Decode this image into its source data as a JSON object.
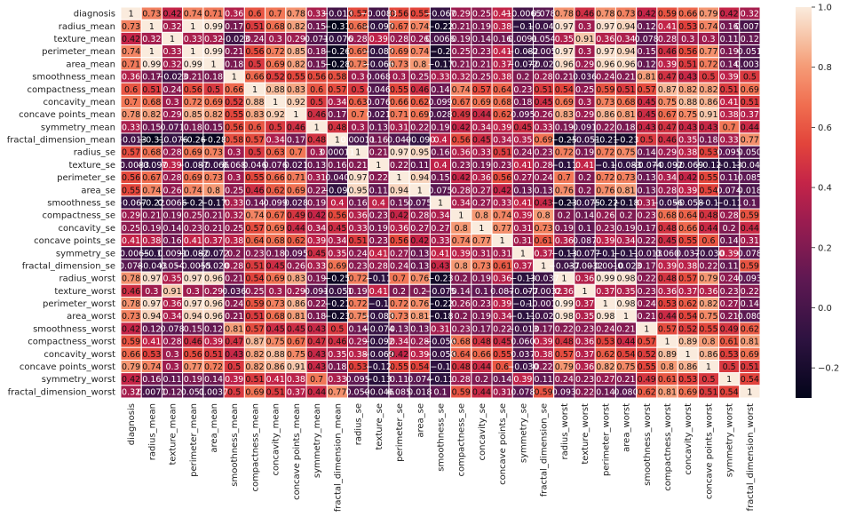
{
  "chart_data": {
    "type": "heatmap",
    "title": "",
    "xlabel": "",
    "ylabel": "",
    "labels": [
      "diagnosis",
      "radius_mean",
      "texture_mean",
      "perimeter_mean",
      "area_mean",
      "smoothness_mean",
      "compactness_mean",
      "concavity_mean",
      "concave points_mean",
      "symmetry_mean",
      "fractal_dimension_mean",
      "radius_se",
      "texture_se",
      "perimeter_se",
      "area_se",
      "smoothness_se",
      "compactness_se",
      "concavity_se",
      "concave points_se",
      "symmetry_se",
      "fractal_dimension_se",
      "radius_worst",
      "texture_worst",
      "perimeter_worst",
      "area_worst",
      "smoothness_worst",
      "compactness_worst",
      "concavity_worst",
      "concave points_worst",
      "symmetry_worst",
      "fractal_dimension_worst"
    ],
    "matrix": [
      [
        1,
        0.73,
        0.42,
        0.74,
        0.71,
        0.36,
        0.6,
        0.7,
        0.78,
        0.33,
        -0.013,
        0.57,
        -0.0083,
        0.56,
        0.55,
        -0.067,
        0.29,
        0.25,
        0.41,
        -0.0065,
        0.078,
        0.78,
        0.46,
        0.78,
        0.73,
        0.42,
        0.59,
        0.66,
        0.79,
        0.42,
        0.32
      ],
      [
        0.73,
        1,
        0.32,
        1,
        0.99,
        0.17,
        0.51,
        0.68,
        0.82,
        0.15,
        -0.31,
        0.68,
        -0.097,
        0.67,
        0.74,
        -0.22,
        0.21,
        0.19,
        0.38,
        -0.1,
        -0.043,
        0.97,
        0.3,
        0.97,
        0.94,
        0.12,
        0.41,
        0.53,
        0.74,
        0.16,
        0.0071
      ],
      [
        0.42,
        0.32,
        1,
        0.33,
        0.32,
        -0.023,
        0.24,
        0.3,
        0.29,
        0.071,
        -0.076,
        0.28,
        0.39,
        0.28,
        0.26,
        0.0066,
        0.19,
        0.14,
        0.16,
        0.0091,
        0.054,
        0.35,
        0.91,
        0.36,
        0.34,
        0.078,
        0.28,
        0.3,
        0.3,
        0.11,
        0.12
      ],
      [
        0.74,
        1,
        0.33,
        1,
        0.99,
        0.21,
        0.56,
        0.72,
        0.85,
        0.18,
        -0.26,
        0.69,
        -0.087,
        0.69,
        0.74,
        -0.2,
        0.25,
        0.23,
        0.41,
        -0.082,
        -0.0055,
        0.97,
        0.3,
        0.97,
        0.94,
        0.15,
        0.46,
        0.56,
        0.77,
        0.19,
        0.051
      ],
      [
        0.71,
        0.99,
        0.32,
        0.99,
        1,
        0.18,
        0.5,
        0.69,
        0.82,
        0.15,
        -0.28,
        0.73,
        -0.066,
        0.73,
        0.8,
        -0.17,
        0.21,
        0.21,
        0.37,
        -0.072,
        -0.02,
        0.96,
        0.29,
        0.96,
        0.96,
        0.12,
        0.39,
        0.51,
        0.72,
        0.14,
        0.0037
      ],
      [
        0.36,
        0.17,
        -0.023,
        0.21,
        0.18,
        1,
        0.66,
        0.52,
        0.55,
        0.56,
        0.58,
        0.3,
        0.068,
        0.3,
        0.25,
        0.33,
        0.32,
        0.25,
        0.38,
        0.2,
        0.28,
        0.21,
        0.036,
        0.24,
        0.21,
        0.81,
        0.47,
        0.43,
        0.5,
        0.39,
        0.5
      ],
      [
        0.6,
        0.51,
        0.24,
        0.56,
        0.5,
        0.66,
        1,
        0.88,
        0.83,
        0.6,
        0.57,
        0.5,
        0.046,
        0.55,
        0.46,
        0.14,
        0.74,
        0.57,
        0.64,
        0.23,
        0.51,
        0.54,
        0.25,
        0.59,
        0.51,
        0.57,
        0.87,
        0.82,
        0.82,
        0.51,
        0.69
      ],
      [
        0.7,
        0.68,
        0.3,
        0.72,
        0.69,
        0.52,
        0.88,
        1,
        0.92,
        0.5,
        0.34,
        0.63,
        0.076,
        0.66,
        0.62,
        0.099,
        0.67,
        0.69,
        0.68,
        0.18,
        0.45,
        0.69,
        0.3,
        0.73,
        0.68,
        0.45,
        0.75,
        0.88,
        0.86,
        0.41,
        0.51
      ],
      [
        0.78,
        0.82,
        0.29,
        0.85,
        0.82,
        0.55,
        0.83,
        0.92,
        1,
        0.46,
        0.17,
        0.7,
        0.021,
        0.71,
        0.69,
        0.028,
        0.49,
        0.44,
        0.62,
        0.095,
        0.26,
        0.83,
        0.29,
        0.86,
        0.81,
        0.45,
        0.67,
        0.75,
        0.91,
        0.38,
        0.37
      ],
      [
        0.33,
        0.15,
        0.071,
        0.18,
        0.15,
        0.56,
        0.6,
        0.5,
        0.46,
        1,
        0.48,
        0.3,
        0.13,
        0.31,
        0.22,
        0.19,
        0.42,
        0.34,
        0.39,
        0.45,
        0.33,
        0.19,
        0.091,
        0.22,
        0.18,
        0.43,
        0.47,
        0.43,
        0.43,
        0.7,
        0.44
      ],
      [
        -0.013,
        -0.31,
        -0.076,
        -0.26,
        -0.28,
        0.58,
        0.57,
        0.34,
        0.17,
        0.48,
        1,
        0.00011,
        0.16,
        0.04,
        -0.09,
        0.4,
        0.56,
        0.45,
        0.34,
        0.35,
        0.69,
        -0.25,
        -0.051,
        -0.21,
        -0.23,
        0.5,
        0.46,
        0.35,
        0.18,
        0.33,
        0.77
      ],
      [
        0.57,
        0.68,
        0.28,
        0.69,
        0.73,
        0.3,
        0.5,
        0.63,
        0.7,
        0.3,
        0.00011,
        1,
        0.21,
        0.97,
        0.95,
        0.16,
        0.36,
        0.33,
        0.51,
        0.24,
        0.23,
        0.72,
        0.19,
        0.72,
        0.75,
        0.14,
        0.29,
        0.38,
        0.53,
        0.095,
        0.05
      ],
      [
        -0.0083,
        -0.097,
        0.39,
        -0.087,
        -0.066,
        0.068,
        0.046,
        0.076,
        0.021,
        0.13,
        0.16,
        0.21,
        1,
        0.22,
        0.11,
        0.4,
        0.23,
        0.19,
        0.23,
        0.41,
        0.28,
        -0.11,
        0.41,
        -0.1,
        -0.083,
        -0.074,
        -0.092,
        -0.069,
        -0.12,
        -0.13,
        -0.046
      ],
      [
        0.56,
        0.67,
        0.28,
        0.69,
        0.73,
        0.3,
        0.55,
        0.66,
        0.71,
        0.31,
        0.04,
        0.97,
        0.22,
        1,
        0.94,
        0.15,
        0.42,
        0.36,
        0.56,
        0.27,
        0.24,
        0.7,
        0.2,
        0.72,
        0.73,
        0.13,
        0.34,
        0.42,
        0.55,
        0.11,
        0.085
      ],
      [
        0.55,
        0.74,
        0.26,
        0.74,
        0.8,
        0.25,
        0.46,
        0.62,
        0.69,
        0.22,
        -0.09,
        0.95,
        0.11,
        0.94,
        1,
        0.075,
        0.28,
        0.27,
        0.42,
        0.13,
        0.13,
        0.76,
        0.2,
        0.76,
        0.81,
        0.13,
        0.28,
        0.39,
        0.54,
        0.074,
        0.018
      ],
      [
        -0.067,
        -0.22,
        0.0066,
        -0.2,
        -0.17,
        0.33,
        0.14,
        0.099,
        0.028,
        0.19,
        0.4,
        0.16,
        0.4,
        0.15,
        0.075,
        1,
        0.34,
        0.27,
        0.33,
        0.41,
        0.43,
        -0.23,
        -0.075,
        -0.22,
        -0.18,
        0.31,
        -0.056,
        -0.058,
        -0.1,
        -0.11,
        0.1
      ],
      [
        0.29,
        0.21,
        0.19,
        0.25,
        0.21,
        0.32,
        0.74,
        0.67,
        0.49,
        0.42,
        0.56,
        0.36,
        0.23,
        0.42,
        0.28,
        0.34,
        1,
        0.8,
        0.74,
        0.39,
        0.8,
        0.2,
        0.14,
        0.26,
        0.2,
        0.23,
        0.68,
        0.64,
        0.48,
        0.28,
        0.59
      ],
      [
        0.25,
        0.19,
        0.14,
        0.23,
        0.21,
        0.25,
        0.57,
        0.69,
        0.44,
        0.34,
        0.45,
        0.33,
        0.19,
        0.36,
        0.27,
        0.27,
        0.8,
        1,
        0.77,
        0.31,
        0.73,
        0.19,
        0.1,
        0.23,
        0.19,
        0.17,
        0.48,
        0.66,
        0.44,
        0.2,
        0.44
      ],
      [
        0.41,
        0.38,
        0.16,
        0.41,
        0.37,
        0.38,
        0.64,
        0.68,
        0.62,
        0.39,
        0.34,
        0.51,
        0.23,
        0.56,
        0.42,
        0.33,
        0.74,
        0.77,
        1,
        0.31,
        0.61,
        0.36,
        0.087,
        0.39,
        0.34,
        0.22,
        0.45,
        0.55,
        0.6,
        0.14,
        0.31
      ],
      [
        -0.0065,
        -0.1,
        0.0091,
        -0.082,
        -0.072,
        0.2,
        0.23,
        0.18,
        0.095,
        0.45,
        0.35,
        0.24,
        0.41,
        0.27,
        0.13,
        0.41,
        0.39,
        0.31,
        0.31,
        1,
        0.37,
        -0.13,
        -0.077,
        -0.1,
        -0.11,
        -0.013,
        0.06,
        0.037,
        -0.03,
        0.39,
        0.078
      ],
      [
        0.078,
        -0.043,
        0.054,
        -0.0055,
        -0.02,
        0.28,
        0.51,
        0.45,
        0.26,
        0.33,
        0.69,
        0.23,
        0.28,
        0.24,
        0.13,
        0.43,
        0.8,
        0.73,
        0.61,
        0.37,
        1,
        -0.037,
        -0.0032,
        -0.001,
        -0.023,
        0.17,
        0.39,
        0.38,
        0.22,
        0.11,
        0.59
      ],
      [
        0.78,
        0.97,
        0.35,
        0.97,
        0.96,
        0.21,
        0.54,
        0.69,
        0.83,
        0.19,
        -0.25,
        0.72,
        -0.11,
        0.7,
        0.76,
        -0.23,
        0.2,
        0.19,
        0.36,
        -0.13,
        -0.037,
        1,
        0.36,
        0.99,
        0.98,
        0.22,
        0.48,
        0.57,
        0.79,
        0.24,
        0.093
      ],
      [
        0.46,
        0.3,
        0.91,
        0.3,
        0.29,
        0.036,
        0.25,
        0.3,
        0.29,
        0.091,
        -0.051,
        0.19,
        0.41,
        0.2,
        0.2,
        -0.075,
        0.14,
        0.1,
        0.087,
        -0.077,
        -0.0032,
        0.36,
        1,
        0.37,
        0.35,
        0.23,
        0.36,
        0.37,
        0.36,
        0.23,
        0.22
      ],
      [
        0.78,
        0.97,
        0.36,
        0.97,
        0.96,
        0.24,
        0.59,
        0.73,
        0.86,
        0.22,
        -0.21,
        0.72,
        -0.1,
        0.72,
        0.76,
        -0.22,
        0.26,
        0.23,
        0.39,
        -0.1,
        -0.001,
        0.99,
        0.37,
        1,
        0.98,
        0.24,
        0.53,
        0.62,
        0.82,
        0.27,
        0.14
      ],
      [
        0.73,
        0.94,
        0.34,
        0.94,
        0.96,
        0.21,
        0.51,
        0.68,
        0.81,
        0.18,
        -0.23,
        0.75,
        -0.083,
        0.73,
        0.81,
        -0.18,
        0.2,
        0.19,
        0.34,
        -0.11,
        -0.023,
        0.98,
        0.35,
        0.98,
        1,
        0.21,
        0.44,
        0.54,
        0.75,
        0.21,
        0.08
      ],
      [
        0.42,
        0.12,
        0.078,
        0.15,
        0.12,
        0.81,
        0.57,
        0.45,
        0.45,
        0.43,
        0.5,
        0.14,
        -0.074,
        0.13,
        0.13,
        0.31,
        0.23,
        0.17,
        0.22,
        -0.013,
        0.17,
        0.22,
        0.23,
        0.24,
        0.21,
        1,
        0.57,
        0.52,
        0.55,
        0.49,
        0.62
      ],
      [
        0.59,
        0.41,
        0.28,
        0.46,
        0.39,
        0.47,
        0.87,
        0.75,
        0.67,
        0.47,
        0.46,
        0.29,
        -0.092,
        0.34,
        0.28,
        -0.056,
        0.68,
        0.48,
        0.45,
        0.06,
        0.39,
        0.48,
        0.36,
        0.53,
        0.44,
        0.57,
        1,
        0.89,
        0.8,
        0.61,
        0.81
      ],
      [
        0.66,
        0.53,
        0.3,
        0.56,
        0.51,
        0.43,
        0.82,
        0.88,
        0.75,
        0.43,
        0.35,
        0.38,
        -0.069,
        0.42,
        0.39,
        -0.058,
        0.64,
        0.66,
        0.55,
        0.037,
        0.38,
        0.57,
        0.37,
        0.62,
        0.54,
        0.52,
        0.89,
        1,
        0.86,
        0.53,
        0.69
      ],
      [
        0.79,
        0.74,
        0.3,
        0.77,
        0.72,
        0.5,
        0.82,
        0.86,
        0.91,
        0.43,
        0.18,
        0.53,
        -0.12,
        0.55,
        0.54,
        -0.1,
        0.48,
        0.44,
        0.6,
        -0.03,
        0.22,
        0.79,
        0.36,
        0.82,
        0.75,
        0.55,
        0.8,
        0.86,
        1,
        0.5,
        0.51
      ],
      [
        0.42,
        0.16,
        0.11,
        0.19,
        0.14,
        0.39,
        0.51,
        0.41,
        0.38,
        0.7,
        0.33,
        0.095,
        -0.13,
        0.11,
        0.074,
        -0.11,
        0.28,
        0.2,
        0.14,
        0.39,
        0.11,
        0.24,
        0.23,
        0.27,
        0.21,
        0.49,
        0.61,
        0.53,
        0.5,
        1,
        0.54
      ],
      [
        0.32,
        0.0071,
        0.12,
        0.051,
        0.0037,
        0.5,
        0.69,
        0.51,
        0.37,
        0.44,
        0.77,
        0.05,
        -0.046,
        0.085,
        0.018,
        0.1,
        0.59,
        0.44,
        0.31,
        0.078,
        0.59,
        0.093,
        0.22,
        0.14,
        0.08,
        0.62,
        0.81,
        0.69,
        0.51,
        0.54,
        1
      ]
    ],
    "colorbar": {
      "min": -0.3,
      "max": 1.0,
      "ticks": [
        -0.2,
        0,
        0.2,
        0.4,
        0.6,
        0.8,
        1.0
      ],
      "tick_labels": [
        "−0.2",
        "0.0",
        "0.2",
        "0.4",
        "0.6",
        "0.8",
        "1.0"
      ]
    },
    "colormap": "rocket",
    "cell_border_color": "#ffffff",
    "annotated": true
  }
}
